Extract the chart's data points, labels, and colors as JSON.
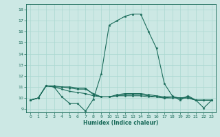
{
  "title": "",
  "xlabel": "Humidex (Indice chaleur)",
  "bg_color": "#cce8e4",
  "grid_color": "#aad8d0",
  "line_color": "#1a6b5a",
  "xlim": [
    -0.5,
    23.5
  ],
  "ylim": [
    8.7,
    18.5
  ],
  "xticks": [
    0,
    1,
    2,
    3,
    4,
    5,
    6,
    7,
    8,
    9,
    10,
    11,
    12,
    13,
    14,
    15,
    16,
    17,
    18,
    19,
    20,
    21,
    22,
    23
  ],
  "yticks": [
    9,
    10,
    11,
    12,
    13,
    14,
    15,
    16,
    17,
    18
  ],
  "series1_y": [
    9.8,
    10.0,
    11.1,
    11.0,
    10.1,
    9.5,
    9.5,
    8.8,
    9.9,
    12.2,
    16.6,
    17.0,
    17.4,
    17.6,
    17.6,
    16.0,
    14.5,
    11.3,
    10.2,
    9.8,
    10.2,
    9.8,
    9.1,
    9.8
  ],
  "series2_y": [
    9.8,
    10.0,
    11.1,
    11.0,
    11.0,
    11.0,
    10.9,
    10.9,
    10.3,
    10.1,
    10.1,
    10.3,
    10.4,
    10.4,
    10.4,
    10.3,
    10.2,
    10.1,
    10.1,
    10.0,
    10.1,
    9.8,
    9.8,
    9.8
  ],
  "series3_y": [
    9.8,
    10.0,
    11.1,
    11.1,
    11.0,
    10.9,
    10.8,
    10.8,
    10.4,
    10.1,
    10.1,
    10.2,
    10.3,
    10.3,
    10.3,
    10.2,
    10.1,
    10.0,
    10.1,
    10.0,
    10.0,
    9.8,
    9.8,
    9.8
  ],
  "series4_y": [
    9.8,
    10.0,
    11.1,
    11.0,
    10.8,
    10.6,
    10.5,
    10.4,
    10.2,
    10.1,
    10.1,
    10.2,
    10.2,
    10.2,
    10.2,
    10.1,
    10.1,
    10.0,
    10.0,
    10.0,
    10.0,
    9.8,
    9.8,
    9.8
  ]
}
